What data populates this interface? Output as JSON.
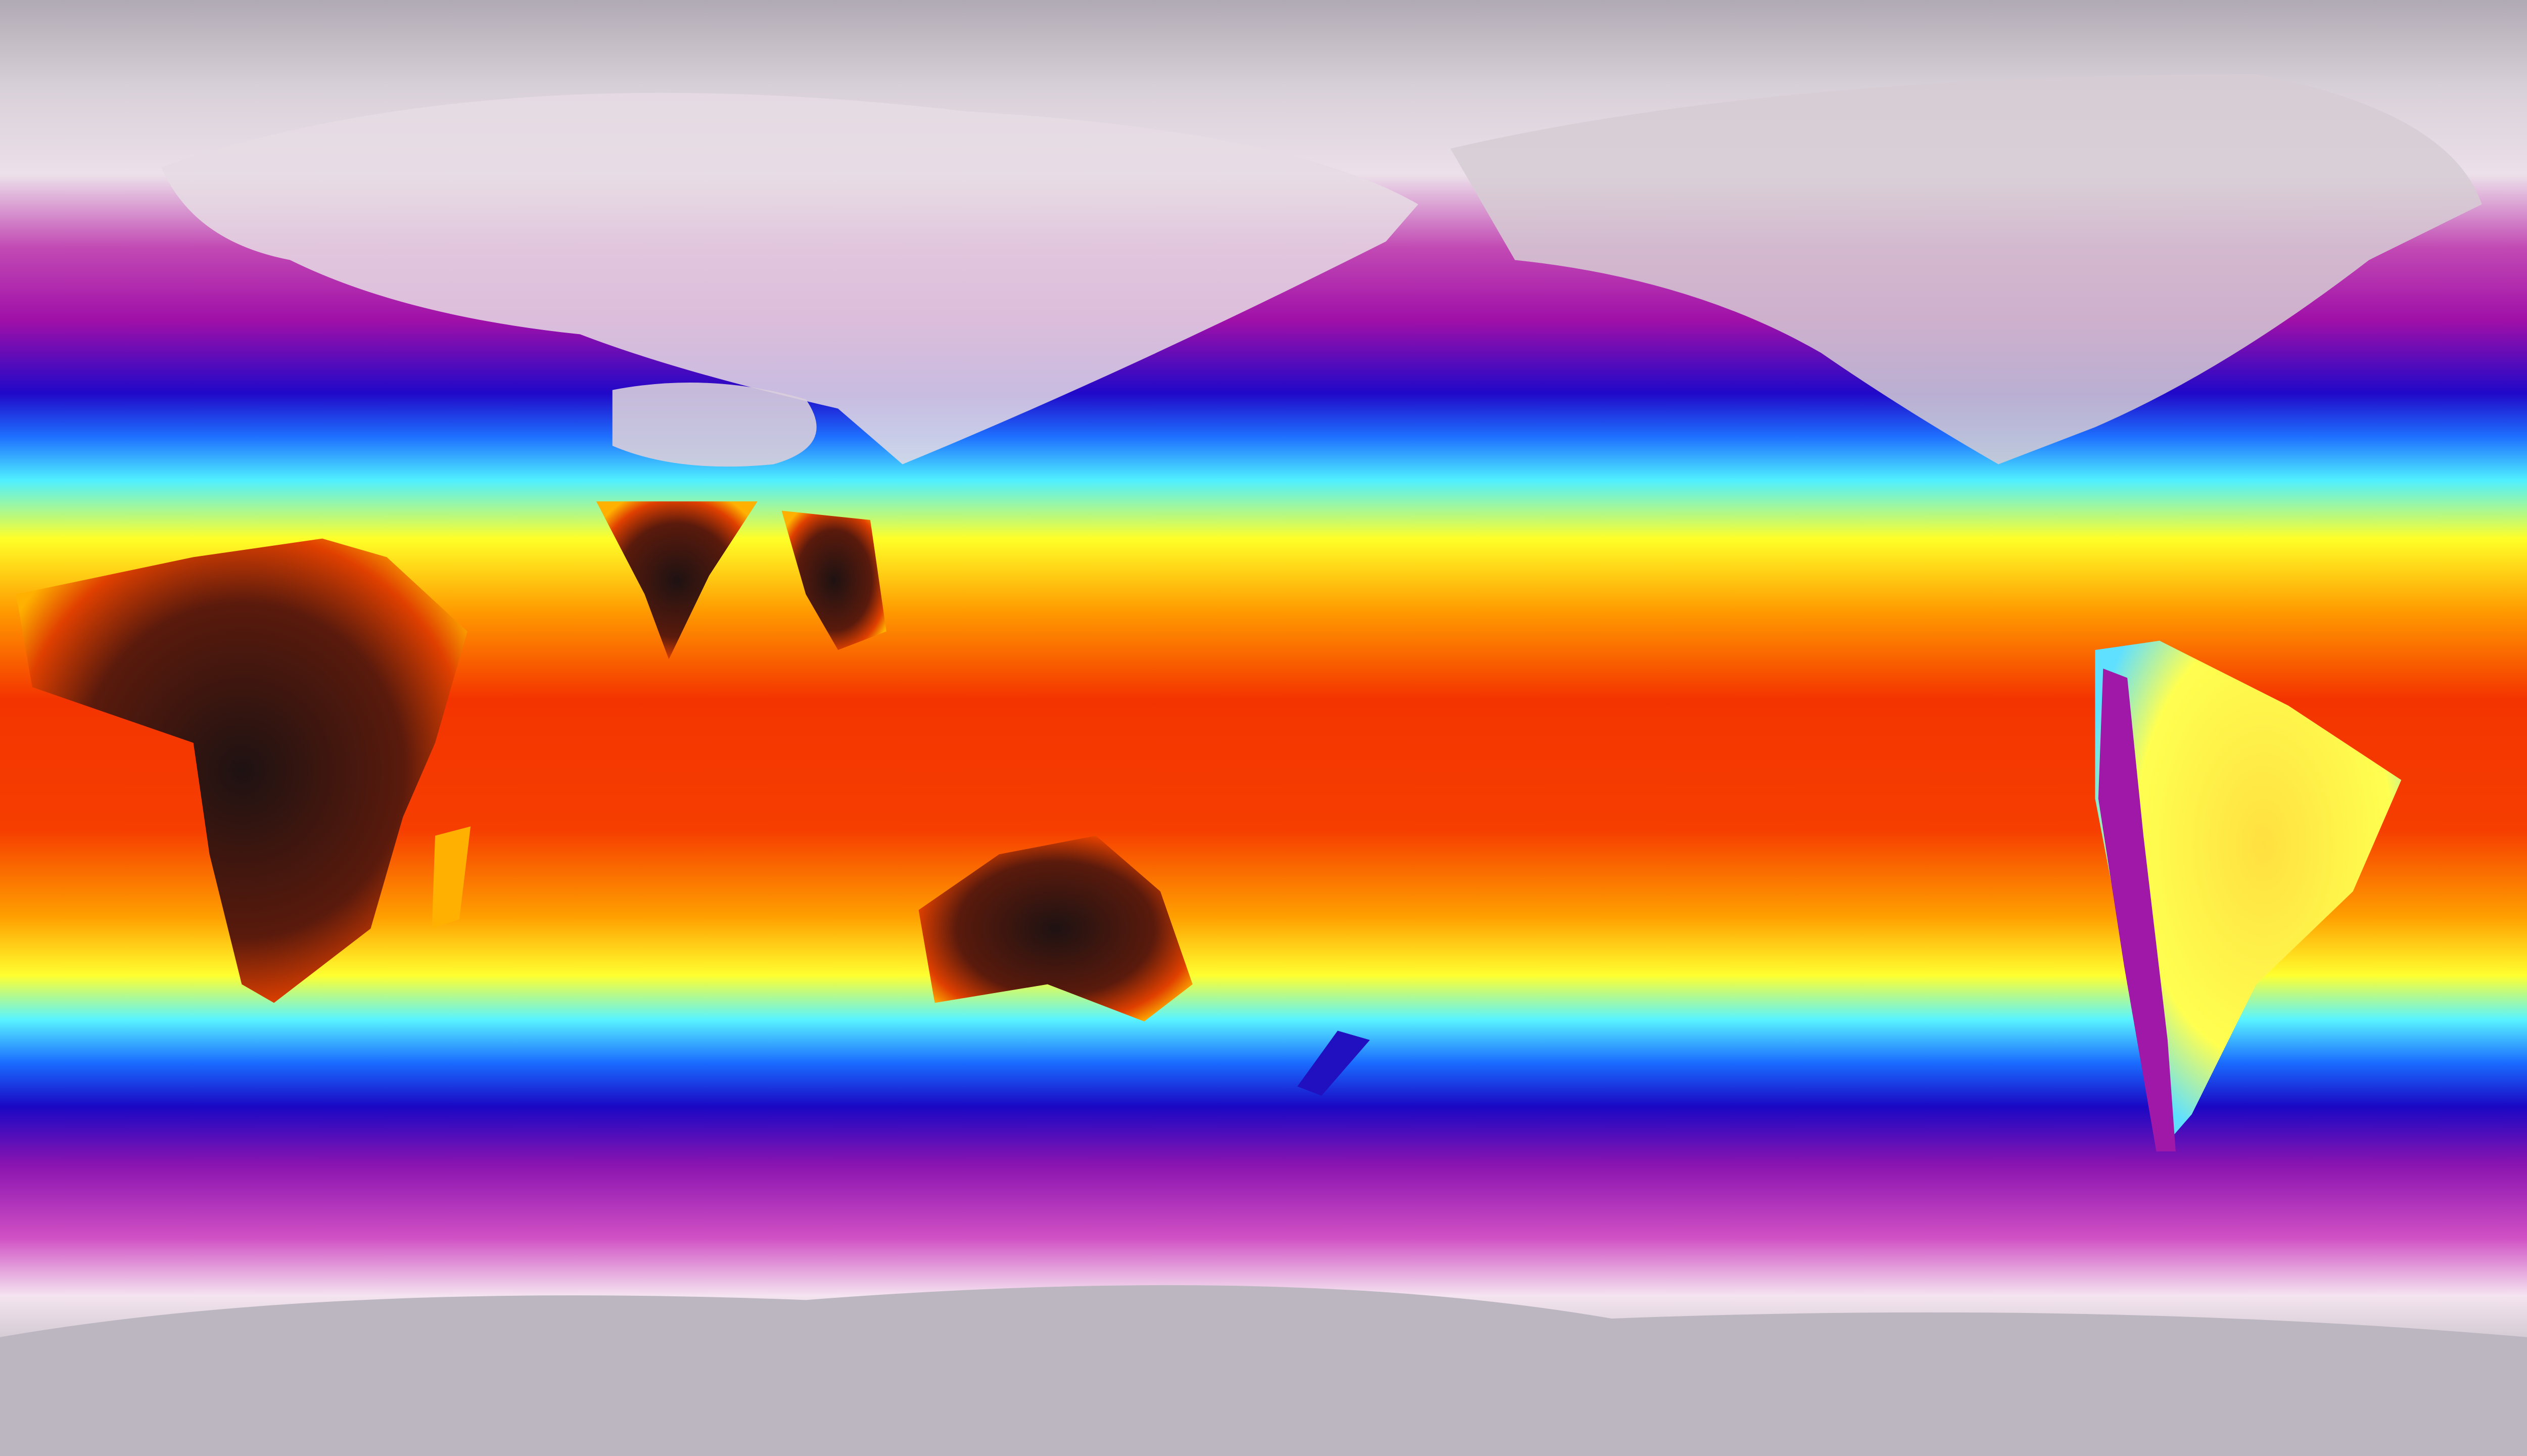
{
  "map": {
    "projection": "equirectangular",
    "colormap": [
      "#a9a4ad",
      "#f4e6f2",
      "#c21fb0",
      "#1a0acc",
      "#1e6bff",
      "#46f4ff",
      "#ffff1a",
      "#ff9a00",
      "#f62a00",
      "#2a1414"
    ],
    "colors": {
      "polar_gray": "#b3aeb6",
      "frost_white": "#f2e4f0",
      "magenta": "#b81aa8",
      "deep_blue": "#1c08c8",
      "cyan": "#4cf0ff",
      "yellow": "#ffff20",
      "orange": "#ff8a00",
      "red": "#f03000",
      "hot_dark": "#2b1515"
    }
  }
}
